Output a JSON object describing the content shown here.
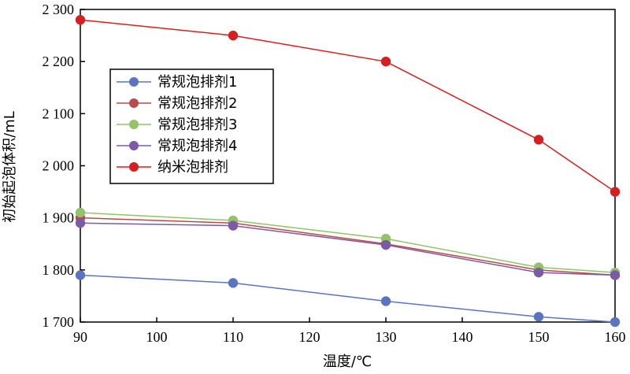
{
  "chart_data": {
    "type": "line",
    "xlabel": "温度/℃",
    "ylabel": "初始起泡体积/mL",
    "x": [
      90,
      110,
      130,
      150,
      160
    ],
    "xlim": [
      90,
      160
    ],
    "ylim": [
      1700,
      2300
    ],
    "xticks": [
      90,
      100,
      110,
      120,
      130,
      140,
      150,
      160
    ],
    "xtick_labels": [
      "90",
      "100",
      "110",
      "120",
      "130",
      "140",
      "150",
      "160"
    ],
    "yticks": [
      1700,
      1800,
      1900,
      2000,
      2100,
      2200,
      2300
    ],
    "ytick_labels": [
      "1 700",
      "1 800",
      "1 900",
      "2 000",
      "2 100",
      "2 200",
      "2 300"
    ],
    "grid": false,
    "legend_position": "upper-left",
    "series": [
      {
        "name": "常规泡排剂1",
        "color": "#5b74c0",
        "values": [
          1790,
          1775,
          1740,
          1710,
          1700
        ]
      },
      {
        "name": "常规泡排剂2",
        "color": "#b94b4b",
        "values": [
          1900,
          1890,
          1850,
          1800,
          1790
        ]
      },
      {
        "name": "常规泡排剂3",
        "color": "#92c26a",
        "values": [
          1910,
          1895,
          1860,
          1805,
          1795
        ]
      },
      {
        "name": "常规泡排剂4",
        "color": "#7b5aa6",
        "values": [
          1890,
          1885,
          1848,
          1795,
          1790
        ]
      },
      {
        "name": "纳米泡排剂",
        "color": "#d42020",
        "values": [
          2280,
          2250,
          2200,
          2050,
          1950
        ]
      }
    ]
  }
}
